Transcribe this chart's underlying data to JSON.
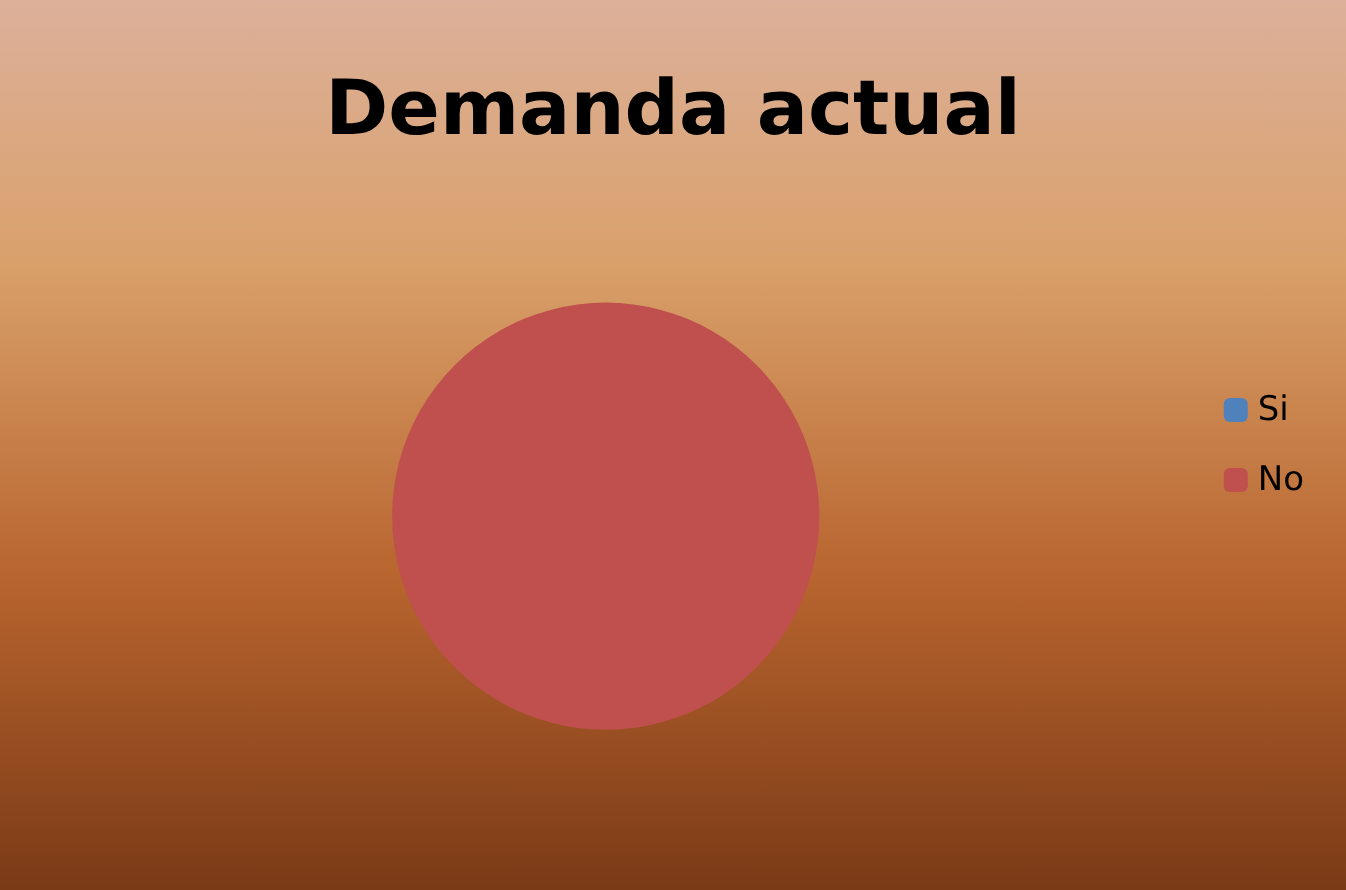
{
  "chart_data": {
    "type": "pie",
    "title": "Demanda actual",
    "categories": [
      "Si",
      "No"
    ],
    "values": [
      0,
      100
    ],
    "colors": [
      "#4f81bd",
      "#c0504d"
    ],
    "legend": "right"
  }
}
